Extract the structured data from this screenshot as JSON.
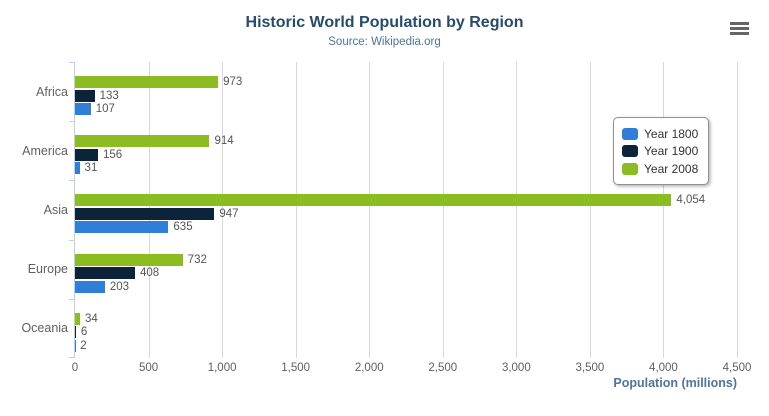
{
  "chart_data": {
    "type": "bar",
    "orientation": "horizontal",
    "title": "Historic World Population by Region",
    "subtitle": "Source: Wikipedia.org",
    "categories": [
      "Africa",
      "America",
      "Asia",
      "Europe",
      "Oceania"
    ],
    "series": [
      {
        "name": "Year 1800",
        "color": "#2f7ed8",
        "values": [
          107,
          31,
          635,
          203,
          2
        ]
      },
      {
        "name": "Year 1900",
        "color": "#0d233a",
        "values": [
          133,
          156,
          947,
          408,
          6
        ]
      },
      {
        "name": "Year 2008",
        "color": "#8bbc21",
        "values": [
          973,
          914,
          4054,
          732,
          34
        ]
      }
    ],
    "bar_order_top_to_bottom": [
      "Year 2008",
      "Year 1900",
      "Year 1800"
    ],
    "xlabel": "Population (millions)",
    "xlim": [
      0,
      4500
    ],
    "xticks": [
      0,
      500,
      1000,
      1500,
      2000,
      2500,
      3000,
      3500,
      4000,
      4500
    ],
    "grid": true,
    "legend_position": "right-inside",
    "data_labels": true
  },
  "icons": {
    "context_menu": "hamburger-icon"
  },
  "colors": {
    "title": "#274b6d",
    "subtitle": "#4d759e",
    "axis_title": "#4d759e",
    "axis_labels": "#606060",
    "gridline": "#d8d8d8",
    "axis_line": "#c0d0e0",
    "menu_icon": "#666666",
    "legend_border": "#909090",
    "legend_text": "#333333"
  }
}
